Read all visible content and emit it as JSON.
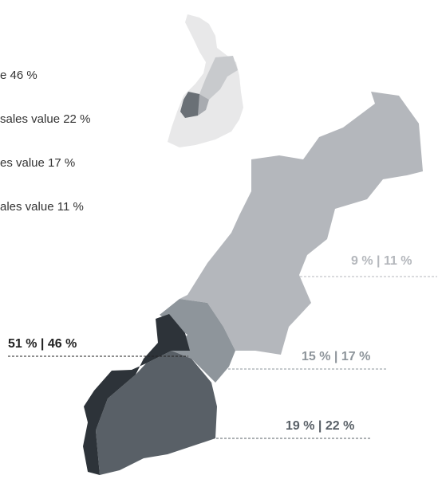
{
  "legend": [
    "e 46 %",
    "sales value 22 %",
    "es value 17 %",
    "ales value 11 %"
  ],
  "regions": [
    {
      "label": "51 % | 46 %"
    },
    {
      "label": "15 % | 17 %"
    },
    {
      "label": "19 % | 22 %"
    },
    {
      "label": "9 % | 11 %"
    }
  ]
}
